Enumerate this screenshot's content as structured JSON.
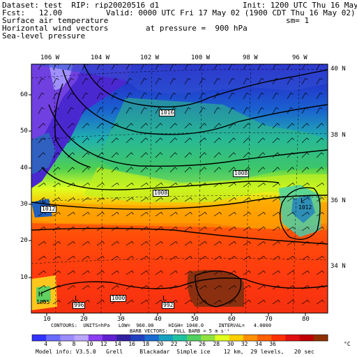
{
  "header": {
    "dataset": "Dataset: test  RIP: rip20020516 d1",
    "init": "Init: 1200 UTC Thu 16 May 02",
    "fcst": "Fcst:   12.00",
    "valid": "Valid: 0000 UTC Fri 17 May 02 (1900 CDT Thu 16 May 02)",
    "field1": "Surface air temperature",
    "sm": "sm= 1",
    "field2": "Horizontal wind vectors",
    "pressure": "at pressure =  900 hPa",
    "field3": "Sea-level pressure"
  },
  "map": {
    "lon_labels": [
      "106 W",
      "104 W",
      "102 W",
      "100 W",
      "98 W",
      "96 W"
    ],
    "lat_labels": [
      "40 N",
      "38 N",
      "36 N",
      "34 N"
    ],
    "y_ticks": [
      "60",
      "50",
      "40",
      "30",
      "20",
      "10"
    ],
    "x_ticks": [
      "10",
      "20",
      "30",
      "40",
      "50",
      "60",
      "70",
      "80"
    ],
    "pressure_labels": [
      "1016",
      "1008",
      "1008",
      "1012",
      "1000",
      "992",
      "996"
    ],
    "highs": [
      {
        "letter": "H",
        "value": "1005"
      }
    ],
    "lows": [
      {
        "letter": "L",
        "value": "1005"
      },
      {
        "letter": "L",
        "value": "1012"
      },
      {
        "letter": "L",
        "value": "996"
      },
      {
        "letter": "L",
        "value": "992"
      }
    ]
  },
  "footer": {
    "contours": "CONTOURS:  UNITS=hPa   LOW=  960.00     HIGH= 1040.0     INTERVAL=   4.0000",
    "barbs": "BARB VECTORS:  FULL BARB = 5 m s⁻¹",
    "colorbar_labels": [
      "4",
      "6",
      "8",
      "10",
      "12",
      "14",
      "16",
      "18",
      "20",
      "22",
      "24",
      "26",
      "28",
      "30",
      "32",
      "34",
      "36"
    ],
    "colorbar_unit": "°C",
    "model_info": "Model info: V3.5.0   Grell     Blackadar  Simple ice    12 km,  29 levels,   20 sec"
  },
  "colors": {
    "colorbar": [
      "#3333ff",
      "#6a6aff",
      "#9a8cff",
      "#b9a6ff",
      "#8a3ff0",
      "#6020d0",
      "#3020a0",
      "#2040c0",
      "#1a6ad0",
      "#18a0c0",
      "#20c0a0",
      "#50d060",
      "#90e040",
      "#e0ff20",
      "#ffd000",
      "#ff9000",
      "#ff6000",
      "#ff3000",
      "#e01010",
      "#c00000",
      "#903000"
    ]
  }
}
